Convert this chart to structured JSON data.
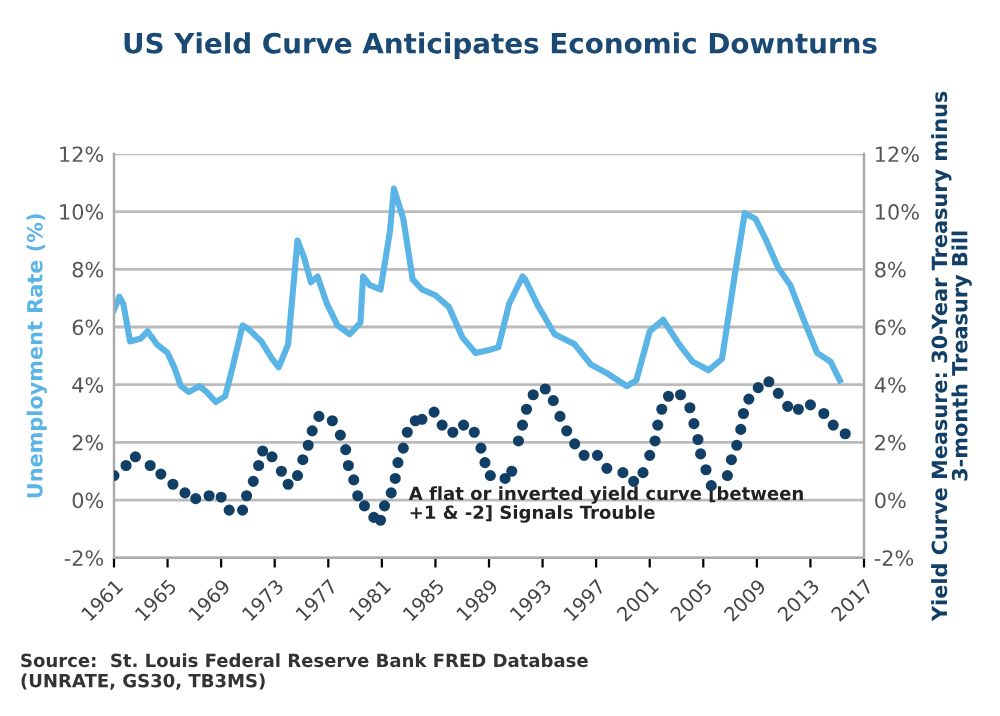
{
  "chart_data": {
    "type": "line",
    "title": "US Yield Curve Anticipates Economic Downturns",
    "ylabel": "Unemployment Rate (%)",
    "y2label": "Yield Curve Measure: 30-Year Treasury minus\n3-month Treasury Bill",
    "annotations": [
      "A flat or inverted yield curve [between\n+1 & -2] Signals Trouble",
      "Source:  St. Louis Federal Reserve Bank FRED Database\n(UNRATE, GS30, TB3MS)"
    ],
    "xlim": [
      1961,
      2017
    ],
    "xticks": [
      1961,
      1965,
      1969,
      1973,
      1977,
      1981,
      1985,
      1989,
      1993,
      1997,
      2001,
      2005,
      2009,
      2013,
      2017
    ],
    "ylim": [
      -2,
      12
    ],
    "yticks": [
      {
        "value": -2,
        "label": "-2%"
      },
      {
        "value": 0,
        "label": "0%"
      },
      {
        "value": 2,
        "label": "2%"
      },
      {
        "value": 4,
        "label": "4%"
      },
      {
        "value": 6,
        "label": "6%"
      },
      {
        "value": 8,
        "label": "8%"
      },
      {
        "value": 10,
        "label": "10%"
      },
      {
        "value": 12,
        "label": "12%"
      }
    ],
    "y2lim": [
      -2,
      12
    ],
    "y2ticks": [
      {
        "value": -2,
        "label": "-2%"
      },
      {
        "value": 0,
        "label": "0%"
      },
      {
        "value": 2,
        "label": "2%"
      },
      {
        "value": 4,
        "label": "4%"
      },
      {
        "value": 6,
        "label": "6%"
      },
      {
        "value": 8,
        "label": "8%"
      },
      {
        "value": 10,
        "label": "10%"
      },
      {
        "value": 12,
        "label": "12%"
      }
    ],
    "grid": "y",
    "legend": false,
    "series": [
      {
        "color": "#5ab4e5",
        "marker": "none",
        "line_style": "solid",
        "x": [
          1961,
          1961.4,
          1961.7,
          1962.2,
          1963,
          1963.5,
          1964.2,
          1965,
          1965.5,
          1966,
          1966.6,
          1967.4,
          1967.9,
          1968.6,
          1969.3,
          1969.8,
          1970.6,
          1971,
          1972,
          1972.8,
          1973.3,
          1974,
          1974.7,
          1975.2,
          1975.7,
          1976.2,
          1976.9,
          1977.7,
          1978.6,
          1979.4,
          1979.6,
          1980.1,
          1980.9,
          1981.6,
          1981.9,
          1982.6,
          1983.3,
          1984,
          1985,
          1986,
          1987,
          1988,
          1989,
          1989.7,
          1990.5,
          1991.5,
          1991.7,
          1992.7,
          1993.9,
          1995.4,
          1996.6,
          1997.8,
          1999.3,
          2000,
          2001,
          2002,
          2003.2,
          2004.2,
          2005.4,
          2006.4,
          2007.4,
          2008.1,
          2008.9,
          2009.6,
          2010.6,
          2011.5,
          2012.5,
          2013.5,
          2014.5,
          2015.2
        ],
        "values": [
          6.6,
          7.05,
          6.8,
          5.5,
          5.6,
          5.85,
          5.4,
          5.1,
          4.6,
          3.95,
          3.75,
          3.95,
          3.75,
          3.4,
          3.6,
          4.5,
          6.05,
          5.95,
          5.5,
          4.9,
          4.6,
          5.4,
          9.0,
          8.4,
          7.55,
          7.75,
          6.8,
          6.05,
          5.75,
          6.15,
          7.75,
          7.45,
          7.3,
          9.3,
          10.8,
          9.75,
          7.65,
          7.3,
          7.1,
          6.7,
          5.65,
          5.1,
          5.2,
          5.3,
          6.8,
          7.75,
          7.65,
          6.7,
          5.75,
          5.4,
          4.7,
          4.4,
          3.95,
          4.15,
          5.85,
          6.25,
          5.4,
          4.8,
          4.5,
          4.9,
          7.95,
          9.95,
          9.75,
          9.1,
          8.05,
          7.45,
          6.25,
          5.1,
          4.8,
          4.15
        ]
      },
      {
        "type": "scatter",
        "axis": "y2",
        "color": "#123f66",
        "marker": "circle",
        "x": [
          1961,
          1961.9,
          1962.6,
          1963.7,
          1964.5,
          1965.4,
          1966.3,
          1967.1,
          1968.1,
          1969,
          1969.6,
          1970.6,
          1970.9,
          1971.4,
          1971.8,
          1972.1,
          1972.8,
          1973.5,
          1974,
          1974.7,
          1975.1,
          1975.5,
          1975.8,
          1976.3,
          1977.3,
          1977.9,
          1978.3,
          1978.5,
          1978.9,
          1979.2,
          1979.7,
          1980.4,
          1980.9,
          1981.2,
          1981.7,
          1982,
          1982.2,
          1982.6,
          1982.9,
          1983.5,
          1984,
          1984.9,
          1985.5,
          1986.3,
          1987.1,
          1987.9,
          1988.4,
          1988.7,
          1989.1,
          1990.2,
          1990.7,
          1991.2,
          1991.5,
          1991.8,
          1992.3,
          1993.2,
          1993.8,
          1994.3,
          1994.8,
          1995.4,
          1996.1,
          1997.1,
          1997.8,
          1999,
          1999.8,
          2000.5,
          2001,
          2001.4,
          2001.6,
          2001.9,
          2002.4,
          2003.3,
          2004,
          2004.3,
          2004.6,
          2004.8,
          2005.2,
          2005.6,
          2006.8,
          2007.1,
          2007.5,
          2007.8,
          2008,
          2008.4,
          2009.1,
          2009.9,
          2010.6,
          2011.3,
          2012.1,
          2013,
          2014,
          2014.7,
          2015.6
        ],
        "values": [
          0.85,
          1.2,
          1.5,
          1.2,
          0.9,
          0.55,
          0.25,
          0.05,
          0.15,
          0.1,
          -0.35,
          -0.35,
          0.15,
          0.65,
          1.2,
          1.7,
          1.5,
          1.0,
          0.55,
          0.85,
          1.4,
          1.9,
          2.4,
          2.9,
          2.75,
          2.25,
          1.75,
          1.2,
          0.7,
          0.15,
          -0.2,
          -0.6,
          -0.7,
          -0.2,
          0.25,
          0.75,
          1.3,
          1.8,
          2.35,
          2.75,
          2.8,
          3.05,
          2.6,
          2.35,
          2.6,
          2.35,
          1.8,
          1.3,
          0.85,
          0.75,
          1.0,
          2.05,
          2.6,
          3.15,
          3.65,
          3.85,
          3.45,
          2.9,
          2.4,
          1.95,
          1.55,
          1.55,
          1.1,
          0.95,
          0.65,
          0.95,
          1.55,
          2.05,
          2.6,
          3.15,
          3.6,
          3.65,
          3.2,
          2.65,
          2.1,
          1.6,
          1.05,
          0.5,
          0.85,
          1.4,
          1.9,
          2.45,
          3.0,
          3.5,
          3.9,
          4.1,
          3.7,
          3.25,
          3.15,
          3.3,
          3.0,
          2.6,
          2.3
        ]
      }
    ]
  }
}
